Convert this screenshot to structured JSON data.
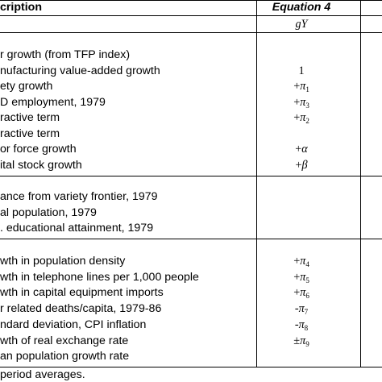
{
  "header": {
    "description": "cription",
    "equation": "Equation 4",
    "dep_var": "gY"
  },
  "section1": [
    {
      "label": "r growth (from TFP index)",
      "coef": ""
    },
    {
      "label": "nufacturing value-added growth",
      "coef": "1"
    },
    {
      "label": "ety growth",
      "coef": "+π",
      "sub": "1"
    },
    {
      "label": "D employment, 1979",
      "coef": "+π",
      "sub": "3"
    },
    {
      "label": "ractive term",
      "coef": "+π",
      "sub": "2"
    },
    {
      "label": "ractive term",
      "coef": ""
    },
    {
      "label": "or force growth",
      "coef": "+α"
    },
    {
      "label": "ital stock growth",
      "coef": "+β"
    }
  ],
  "section2": [
    {
      "label": "ance from variety frontier, 1979",
      "coef": ""
    },
    {
      "label": "al population, 1979",
      "coef": ""
    },
    {
      "label": ". educational attainment, 1979",
      "coef": ""
    }
  ],
  "section3": [
    {
      "label": "wth in population density",
      "coef": "+π",
      "sub": "4"
    },
    {
      "label": "wth in telephone lines per 1,000 people",
      "coef": "+π",
      "sub": "5"
    },
    {
      "label": "wth in capital equipment imports",
      "coef": "+π",
      "sub": "6"
    },
    {
      "label": "r related deaths/capita, 1979-86",
      "coef": "-π",
      "sub": "7"
    },
    {
      "label": "ndard deviation, CPI inflation",
      "coef": "-π",
      "sub": "8"
    },
    {
      "label": "wth of real exchange rate",
      "coef": "±π",
      "sub": "9"
    },
    {
      "label": "an population growth rate",
      "coef": ""
    }
  ],
  "footnote": " period averages."
}
